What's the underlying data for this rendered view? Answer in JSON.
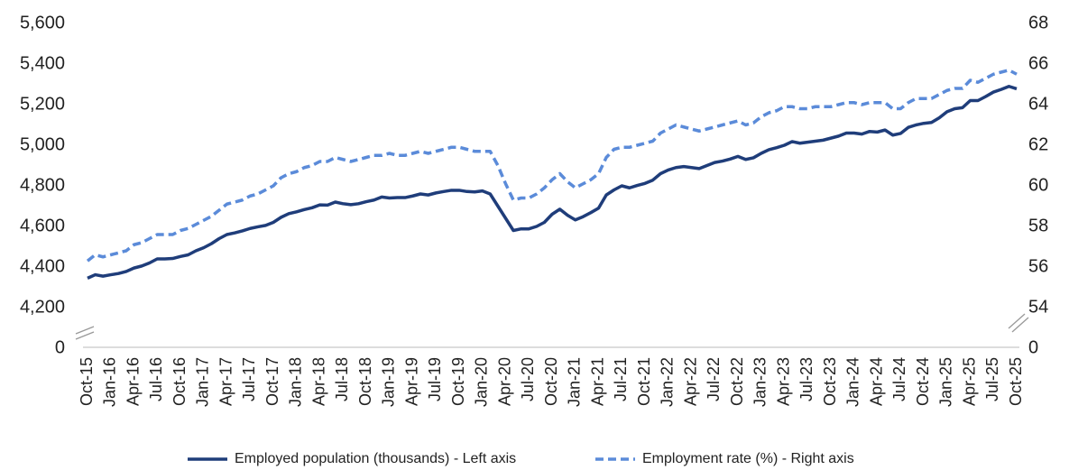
{
  "chart_data": {
    "type": "line",
    "categories": [
      "Oct-15",
      null,
      null,
      "Jan-16",
      null,
      null,
      "Apr-16",
      null,
      null,
      "Jul-16",
      null,
      null,
      "Oct-16",
      null,
      null,
      "Jan-17",
      null,
      null,
      "Apr-17",
      null,
      null,
      "Jul-17",
      null,
      null,
      "Oct-17",
      null,
      null,
      "Jan-18",
      null,
      null,
      "Apr-18",
      null,
      null,
      "Jul-18",
      null,
      null,
      "Oct-18",
      null,
      null,
      "Jan-19",
      null,
      null,
      "Apr-19",
      null,
      null,
      "Jul-19",
      null,
      null,
      "Oct-19",
      null,
      null,
      "Jan-20",
      null,
      null,
      "Apr-20",
      null,
      null,
      "Jul-20",
      null,
      null,
      "Oct-20",
      null,
      null,
      "Jan-21",
      null,
      null,
      "Apr-21",
      null,
      null,
      "Jul-21",
      null,
      null,
      "Oct-21",
      null,
      null,
      "Jan-22",
      null,
      null,
      "Apr-22",
      null,
      null,
      "Jul-22",
      null,
      null,
      "Oct-22",
      null,
      null,
      "Jan-23",
      null,
      null,
      "Apr-23",
      null,
      null,
      "Jul-23",
      null,
      null,
      "Oct-23",
      null,
      null,
      "Jan-24",
      null,
      null,
      "Apr-24",
      null,
      null,
      "Jul-24",
      null,
      null,
      "Oct-24",
      null,
      null,
      "Jan-25",
      null,
      null,
      "Apr-25",
      null,
      null,
      "Jul-25",
      null,
      null,
      "Oct-25"
    ],
    "series": [
      {
        "name": "Employed population (thousands) - Left axis",
        "color": "#1f3d7a",
        "dash": false,
        "axis": "y",
        "values": [
          4345,
          4362,
          4355,
          4362,
          4368,
          4378,
          4395,
          4405,
          4420,
          4440,
          4440,
          4442,
          4452,
          4460,
          4480,
          4495,
          4515,
          4540,
          4560,
          4568,
          4578,
          4590,
          4598,
          4605,
          4620,
          4645,
          4663,
          4672,
          4683,
          4692,
          4706,
          4705,
          4720,
          4712,
          4707,
          4712,
          4722,
          4730,
          4745,
          4740,
          4742,
          4742,
          4750,
          4760,
          4755,
          4765,
          4772,
          4778,
          4778,
          4772,
          4770,
          4775,
          4760,
          4700,
          4640,
          4580,
          4588,
          4588,
          4600,
          4620,
          4660,
          4685,
          4655,
          4632,
          4648,
          4668,
          4690,
          4755,
          4780,
          4800,
          4790,
          4802,
          4812,
          4828,
          4860,
          4878,
          4890,
          4895,
          4890,
          4885,
          4900,
          4915,
          4922,
          4932,
          4945,
          4930,
          4938,
          4960,
          4978,
          4988,
          5000,
          5018,
          5010,
          5015,
          5020,
          5025,
          5035,
          5045,
          5060,
          5060,
          5055,
          5068,
          5065,
          5075,
          5050,
          5058,
          5088,
          5100,
          5108,
          5112,
          5135,
          5165,
          5180,
          5185,
          5220,
          5220,
          5240,
          5262,
          5275,
          5290,
          5278
        ]
      },
      {
        "name": "Employment rate (%) - Right axis",
        "color": "#5b8bd9",
        "dash": true,
        "axis": "y2",
        "values": [
          56.3,
          56.6,
          56.5,
          56.6,
          56.7,
          56.8,
          57.1,
          57.2,
          57.4,
          57.6,
          57.6,
          57.6,
          57.8,
          57.9,
          58.1,
          58.3,
          58.5,
          58.8,
          59.1,
          59.2,
          59.3,
          59.5,
          59.6,
          59.8,
          60.0,
          60.4,
          60.6,
          60.7,
          60.9,
          61.0,
          61.2,
          61.2,
          61.4,
          61.3,
          61.2,
          61.3,
          61.4,
          61.5,
          61.5,
          61.6,
          61.5,
          61.5,
          61.6,
          61.7,
          61.6,
          61.7,
          61.8,
          61.9,
          61.9,
          61.8,
          61.7,
          61.7,
          61.7,
          61.0,
          60.1,
          59.3,
          59.4,
          59.4,
          59.6,
          59.9,
          60.3,
          60.6,
          60.2,
          59.9,
          60.1,
          60.3,
          60.6,
          61.4,
          61.8,
          61.9,
          61.9,
          62.0,
          62.1,
          62.2,
          62.6,
          62.8,
          63.0,
          62.9,
          62.8,
          62.7,
          62.8,
          62.9,
          63.0,
          63.1,
          63.2,
          63.0,
          63.1,
          63.4,
          63.6,
          63.7,
          63.9,
          63.9,
          63.8,
          63.8,
          63.9,
          63.9,
          63.9,
          64.0,
          64.1,
          64.1,
          64.0,
          64.1,
          64.1,
          64.1,
          63.8,
          63.8,
          64.1,
          64.3,
          64.3,
          64.3,
          64.5,
          64.7,
          64.8,
          64.8,
          65.2,
          65.1,
          65.3,
          65.5,
          65.6,
          65.7,
          65.5
        ]
      }
    ],
    "ylim": [
      0,
      5600
    ],
    "y_break": [
      0,
      4000
    ],
    "yticks": [
      0,
      {
        "value": 4200,
        "label": "4,200"
      },
      {
        "value": 4400,
        "label": "4,400"
      },
      {
        "value": 4600,
        "label": "4,600"
      },
      {
        "value": 4800,
        "label": "4,800"
      },
      {
        "value": 5000,
        "label": "5,000"
      },
      {
        "value": 5200,
        "label": "5,200"
      },
      {
        "value": 5400,
        "label": "5,400"
      },
      {
        "value": 5600,
        "label": "5,600"
      }
    ],
    "y2lim": [
      0,
      68
    ],
    "y2_break": [
      0,
      52
    ],
    "y2ticks": [
      0,
      54,
      56,
      58,
      60,
      62,
      64,
      66,
      68
    ],
    "grid": false,
    "legend": "bottom"
  }
}
